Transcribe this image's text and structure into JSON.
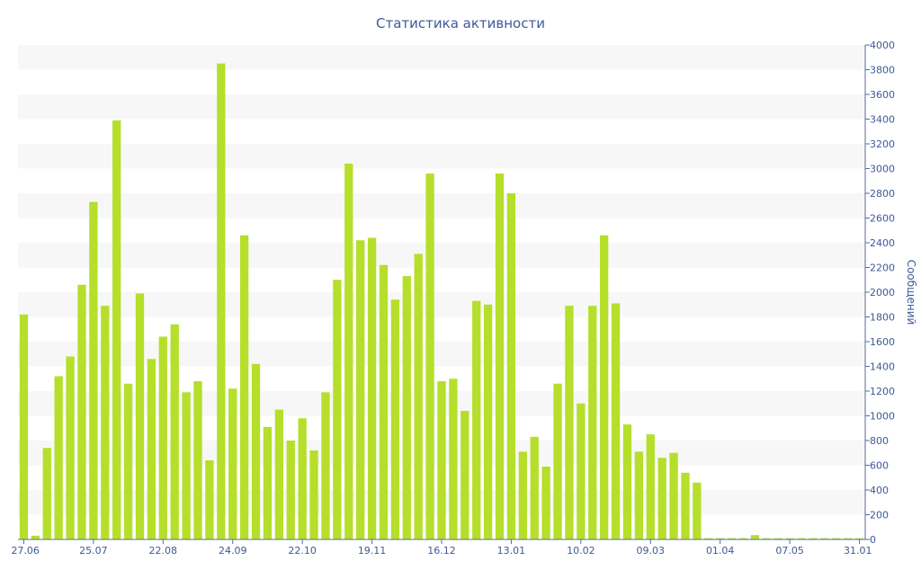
{
  "chart_data": {
    "type": "bar",
    "title": "Статистика активности",
    "ylabel": "Сообщений",
    "xlabel": "",
    "ylim": [
      0,
      4000
    ],
    "yticks": [
      0,
      200,
      400,
      600,
      800,
      1000,
      1200,
      1400,
      1600,
      1800,
      2000,
      2200,
      2400,
      2600,
      2800,
      3000,
      3200,
      3400,
      3600,
      3800,
      4000
    ],
    "grid": "alternating horizontal bands",
    "y_axis_side": "right",
    "x_tick_labels": [
      {
        "index": 0,
        "label": "27.06"
      },
      {
        "index": 6,
        "label": "25.07"
      },
      {
        "index": 12,
        "label": "22.08"
      },
      {
        "index": 18,
        "label": "24.09"
      },
      {
        "index": 24,
        "label": "22.10"
      },
      {
        "index": 30,
        "label": "19.11"
      },
      {
        "index": 36,
        "label": "16.12"
      },
      {
        "index": 42,
        "label": "13.01"
      },
      {
        "index": 48,
        "label": "10.02"
      },
      {
        "index": 54,
        "label": "09.03"
      },
      {
        "index": 60,
        "label": "01.04"
      },
      {
        "index": 66,
        "label": "07.05"
      },
      {
        "index": 72,
        "label": "31.01"
      }
    ],
    "values": [
      1820,
      30,
      740,
      1320,
      1480,
      2060,
      2730,
      1890,
      3390,
      1260,
      1990,
      1460,
      1640,
      1740,
      1190,
      1280,
      640,
      3850,
      1220,
      2460,
      1420,
      910,
      1050,
      800,
      980,
      720,
      1190,
      2100,
      3040,
      2420,
      2440,
      2220,
      1940,
      2130,
      2310,
      2960,
      1280,
      1300,
      1040,
      1930,
      1900,
      2960,
      2800,
      710,
      830,
      590,
      1260,
      1890,
      1100,
      1890,
      2460,
      1910,
      930,
      710,
      850,
      660,
      700,
      540,
      460,
      10,
      10,
      10,
      10,
      35,
      10,
      10,
      10,
      10,
      10,
      10,
      10,
      10,
      10
    ],
    "colors": {
      "bar": "#b5df2a",
      "text": "#3d5a99",
      "band": "#f7f7f7",
      "axis": "#5a6b9a"
    }
  }
}
